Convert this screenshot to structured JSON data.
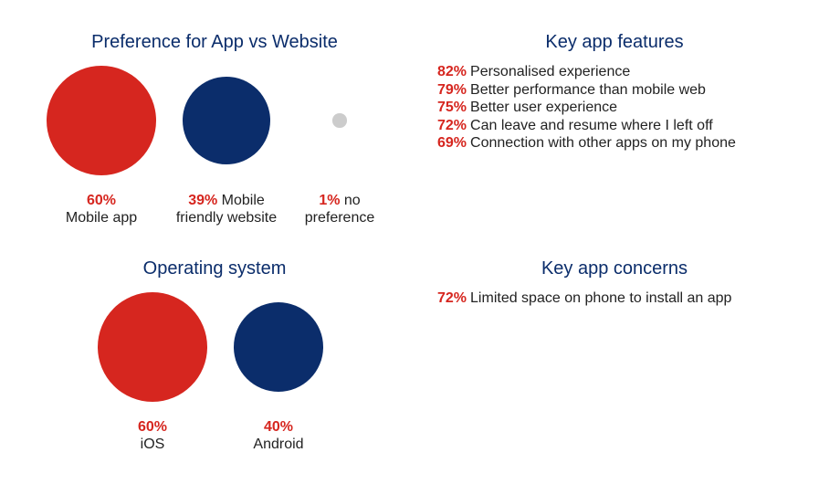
{
  "colors": {
    "primary": "#d6261f",
    "secondary": "#0b2d6b",
    "title": "#0b2d6b"
  },
  "chart_data": [
    {
      "type": "bubble",
      "title": "Preference for App vs Website",
      "items": [
        {
          "pct_label": "60%",
          "value": 60,
          "label_inline": "",
          "label": "Mobile app",
          "color": "#d6261f"
        },
        {
          "pct_label": "39%",
          "value": 39,
          "label_inline": "Mobile",
          "label": "friendly website",
          "color": "#0b2d6b"
        },
        {
          "pct_label": "1%",
          "value": 1,
          "label_inline": "no",
          "label": "preference",
          "color": "#cccccc"
        }
      ]
    },
    {
      "type": "bubble",
      "title": "Operating system",
      "items": [
        {
          "pct_label": "60%",
          "value": 60,
          "label_inline": "",
          "label": "iOS",
          "color": "#d6261f"
        },
        {
          "pct_label": "40%",
          "value": 40,
          "label_inline": "",
          "label": "Android",
          "color": "#0b2d6b"
        }
      ]
    },
    {
      "type": "table",
      "title": "Key app features",
      "rows": [
        {
          "pct_label": "82%",
          "value": 82,
          "label": "Personalised experience"
        },
        {
          "pct_label": "79%",
          "value": 79,
          "label": "Better performance than mobile web"
        },
        {
          "pct_label": "75%",
          "value": 75,
          "label": "Better user experience"
        },
        {
          "pct_label": "72%",
          "value": 72,
          "label": "Can leave and resume where I left off"
        },
        {
          "pct_label": "69%",
          "value": 69,
          "label": "Connection with other apps on my phone"
        }
      ]
    },
    {
      "type": "table",
      "title": "Key app concerns",
      "rows": [
        {
          "pct_label": "72%",
          "value": 72,
          "label": "Limited space on phone to install an app"
        }
      ]
    }
  ]
}
